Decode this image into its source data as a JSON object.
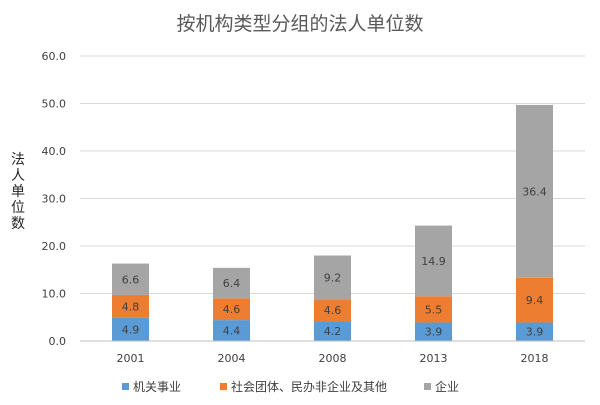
{
  "chart_data": {
    "type": "bar",
    "stacked": true,
    "title": "按机构类型分组的法人单位数",
    "ylabel": "法人单位数",
    "xlabel": "",
    "categories": [
      "2001",
      "2004",
      "2008",
      "2013",
      "2018"
    ],
    "ylim": [
      0,
      60
    ],
    "yticks": [
      "0.0",
      "10.0",
      "20.0",
      "30.0",
      "40.0",
      "50.0",
      "60.0"
    ],
    "grid": true,
    "legend_position": "bottom",
    "series": [
      {
        "name": "机关事业",
        "color": "#5b9bd5",
        "values": [
          4.9,
          4.4,
          4.2,
          3.9,
          3.9
        ]
      },
      {
        "name": "社会团体、民办非企业及其他",
        "color": "#ed7d31",
        "values": [
          4.8,
          4.6,
          4.6,
          5.5,
          9.4
        ]
      },
      {
        "name": "企业",
        "color": "#a5a5a5",
        "values": [
          6.6,
          6.4,
          9.2,
          14.9,
          36.4
        ]
      }
    ]
  }
}
